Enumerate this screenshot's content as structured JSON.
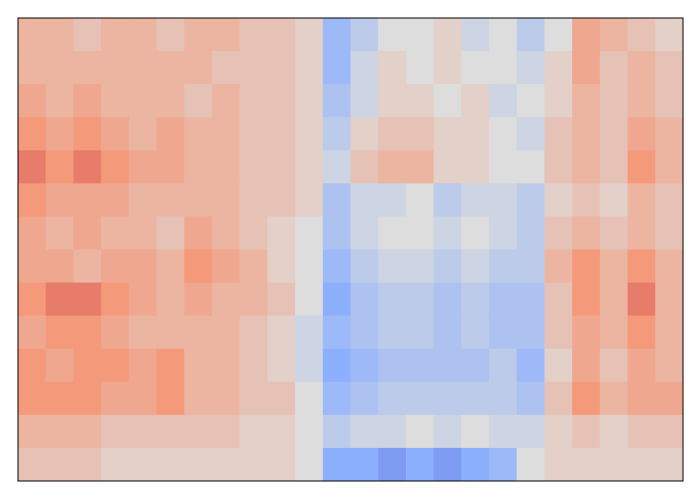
{
  "chart_data": {
    "type": "heatmap",
    "clim": [
      -1,
      1
    ],
    "colors": [
      "#3b4cc0",
      "#8db0fe",
      "#dddddd",
      "#f49a7b",
      "#b40426"
    ],
    "values": [
      [
        0.3,
        0.3,
        0.2,
        0.3,
        0.3,
        0.2,
        0.3,
        0.3,
        0.2,
        0.2,
        0.1,
        -0.4,
        -0.2,
        0.0,
        0.0,
        0.1,
        -0.1,
        0.0,
        -0.2,
        0.0,
        0.4,
        0.3,
        0.2,
        0.1
      ],
      [
        0.3,
        0.3,
        0.3,
        0.3,
        0.3,
        0.3,
        0.3,
        0.2,
        0.2,
        0.2,
        0.1,
        -0.4,
        -0.1,
        0.1,
        0.0,
        0.1,
        0.0,
        0.0,
        -0.1,
        0.1,
        0.4,
        0.2,
        0.3,
        0.2
      ],
      [
        0.4,
        0.3,
        0.4,
        0.3,
        0.3,
        0.3,
        0.2,
        0.3,
        0.2,
        0.2,
        0.1,
        -0.3,
        -0.1,
        0.1,
        0.1,
        0.0,
        0.1,
        -0.1,
        0.0,
        0.1,
        0.3,
        0.2,
        0.3,
        0.2
      ],
      [
        0.5,
        0.4,
        0.5,
        0.4,
        0.3,
        0.4,
        0.3,
        0.3,
        0.2,
        0.2,
        0.1,
        -0.2,
        0.1,
        0.2,
        0.2,
        0.1,
        0.1,
        0.0,
        -0.1,
        0.2,
        0.3,
        0.2,
        0.4,
        0.3
      ],
      [
        0.6,
        0.5,
        0.6,
        0.5,
        0.4,
        0.4,
        0.3,
        0.3,
        0.2,
        0.2,
        0.1,
        -0.1,
        0.2,
        0.3,
        0.3,
        0.1,
        0.1,
        0.0,
        0.0,
        0.2,
        0.3,
        0.2,
        0.5,
        0.3
      ],
      [
        0.5,
        0.4,
        0.4,
        0.4,
        0.3,
        0.3,
        0.3,
        0.3,
        0.2,
        0.2,
        0.1,
        -0.3,
        -0.1,
        -0.1,
        0.0,
        -0.2,
        -0.1,
        -0.1,
        -0.2,
        0.1,
        0.2,
        0.1,
        0.3,
        0.2
      ],
      [
        0.4,
        0.3,
        0.4,
        0.3,
        0.3,
        0.2,
        0.4,
        0.3,
        0.2,
        0.1,
        0.0,
        -0.3,
        -0.1,
        0.0,
        0.0,
        -0.1,
        0.0,
        -0.1,
        -0.2,
        0.2,
        0.3,
        0.2,
        0.3,
        0.2
      ],
      [
        0.4,
        0.4,
        0.3,
        0.4,
        0.4,
        0.3,
        0.5,
        0.4,
        0.3,
        0.1,
        0.0,
        -0.4,
        -0.2,
        -0.1,
        -0.1,
        -0.2,
        -0.1,
        -0.2,
        -0.2,
        0.3,
        0.5,
        0.3,
        0.5,
        0.3
      ],
      [
        0.5,
        0.6,
        0.6,
        0.5,
        0.4,
        0.3,
        0.4,
        0.3,
        0.3,
        0.2,
        0.0,
        -0.5,
        -0.3,
        -0.2,
        -0.2,
        -0.3,
        -0.2,
        -0.3,
        -0.3,
        0.2,
        0.5,
        0.3,
        0.6,
        0.3
      ],
      [
        0.4,
        0.5,
        0.5,
        0.4,
        0.3,
        0.3,
        0.3,
        0.3,
        0.2,
        0.1,
        -0.1,
        -0.4,
        -0.3,
        -0.2,
        -0.2,
        -0.3,
        -0.2,
        -0.3,
        -0.3,
        0.2,
        0.4,
        0.3,
        0.5,
        0.3
      ],
      [
        0.5,
        0.4,
        0.5,
        0.5,
        0.4,
        0.5,
        0.3,
        0.3,
        0.2,
        0.1,
        -0.1,
        -0.5,
        -0.4,
        -0.3,
        -0.3,
        -0.3,
        -0.3,
        -0.2,
        -0.4,
        0.1,
        0.4,
        0.2,
        0.4,
        0.3
      ],
      [
        0.5,
        0.5,
        0.5,
        0.4,
        0.4,
        0.5,
        0.3,
        0.3,
        0.2,
        0.2,
        0.0,
        -0.4,
        -0.3,
        -0.2,
        -0.2,
        -0.2,
        -0.2,
        -0.2,
        -0.3,
        0.2,
        0.5,
        0.3,
        0.4,
        0.4
      ],
      [
        0.3,
        0.3,
        0.3,
        0.2,
        0.2,
        0.2,
        0.2,
        0.2,
        0.1,
        0.1,
        0.0,
        -0.2,
        -0.1,
        -0.1,
        0.0,
        -0.1,
        0.0,
        -0.1,
        -0.1,
        0.1,
        0.2,
        0.1,
        0.2,
        0.2
      ],
      [
        0.2,
        0.2,
        0.2,
        0.1,
        0.1,
        0.1,
        0.1,
        0.1,
        0.1,
        0.1,
        0.0,
        -0.5,
        -0.5,
        -0.6,
        -0.5,
        -0.6,
        -0.5,
        -0.4,
        0.0,
        0.1,
        0.1,
        0.1,
        0.1,
        0.1
      ]
    ]
  }
}
